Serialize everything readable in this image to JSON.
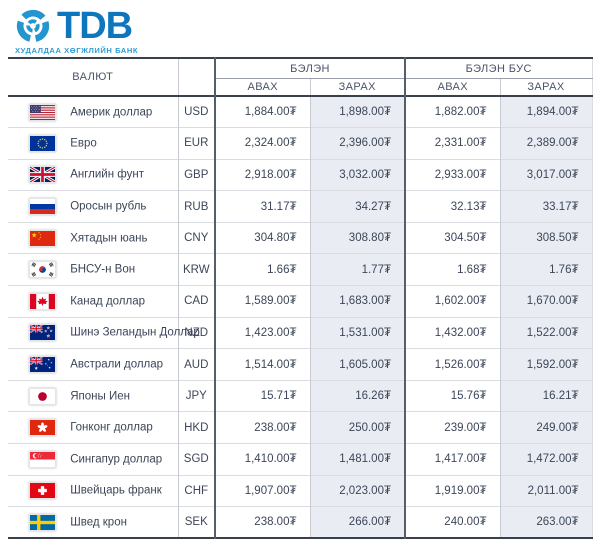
{
  "logo": {
    "text": "TDB",
    "subtitle": "ХУДАЛДАА ХӨГЖЛИЙН БАНК",
    "icon": "tdb-knot-icon",
    "brand_blue": "#0e76bc",
    "accent_blue": "#2f9cd6"
  },
  "table": {
    "header": {
      "currency": "ВАЛЮТ",
      "cash": "БЭЛЭН",
      "noncash": "БЭЛЭН БУС",
      "buy": "АВАХ",
      "sell": "ЗАРАХ"
    },
    "colors": {
      "sell_column_bg": "#e9edf3",
      "dark_border": "#39404a",
      "text": "#3c4658"
    },
    "rows": [
      {
        "flag": "us",
        "name": "Америк доллар",
        "code": "USD",
        "cash_buy": "1,884.00₮",
        "cash_sell": "1,898.00₮",
        "noncash_buy": "1,882.00₮",
        "noncash_sell": "1,894.00₮"
      },
      {
        "flag": "eu",
        "name": "Евро",
        "code": "EUR",
        "cash_buy": "2,324.00₮",
        "cash_sell": "2,396.00₮",
        "noncash_buy": "2,331.00₮",
        "noncash_sell": "2,389.00₮"
      },
      {
        "flag": "gb",
        "name": "Английн фунт",
        "code": "GBP",
        "cash_buy": "2,918.00₮",
        "cash_sell": "3,032.00₮",
        "noncash_buy": "2,933.00₮",
        "noncash_sell": "3,017.00₮"
      },
      {
        "flag": "ru",
        "name": "Оросын рубль",
        "code": "RUB",
        "cash_buy": "31.17₮",
        "cash_sell": "34.27₮",
        "noncash_buy": "32.13₮",
        "noncash_sell": "33.17₮"
      },
      {
        "flag": "cn",
        "name": "Хятадын юань",
        "code": "CNY",
        "cash_buy": "304.80₮",
        "cash_sell": "308.80₮",
        "noncash_buy": "304.50₮",
        "noncash_sell": "308.50₮"
      },
      {
        "flag": "kr",
        "name": "БНСУ-н Вон",
        "code": "KRW",
        "cash_buy": "1.66₮",
        "cash_sell": "1.77₮",
        "noncash_buy": "1.68₮",
        "noncash_sell": "1.76₮"
      },
      {
        "flag": "ca",
        "name": "Канад доллар",
        "code": "CAD",
        "cash_buy": "1,589.00₮",
        "cash_sell": "1,683.00₮",
        "noncash_buy": "1,602.00₮",
        "noncash_sell": "1,670.00₮"
      },
      {
        "flag": "nz",
        "name": "Шинэ Зеландын Доллар",
        "code": "NZD",
        "cash_buy": "1,423.00₮",
        "cash_sell": "1,531.00₮",
        "noncash_buy": "1,432.00₮",
        "noncash_sell": "1,522.00₮"
      },
      {
        "flag": "au",
        "name": "Австрали доллар",
        "code": "AUD",
        "cash_buy": "1,514.00₮",
        "cash_sell": "1,605.00₮",
        "noncash_buy": "1,526.00₮",
        "noncash_sell": "1,592.00₮"
      },
      {
        "flag": "jp",
        "name": "Японы Иен",
        "code": "JPY",
        "cash_buy": "15.71₮",
        "cash_sell": "16.26₮",
        "noncash_buy": "15.76₮",
        "noncash_sell": "16.21₮"
      },
      {
        "flag": "hk",
        "name": "Гонконг доллар",
        "code": "HKD",
        "cash_buy": "238.00₮",
        "cash_sell": "250.00₮",
        "noncash_buy": "239.00₮",
        "noncash_sell": "249.00₮"
      },
      {
        "flag": "sg",
        "name": "Сингапур доллар",
        "code": "SGD",
        "cash_buy": "1,410.00₮",
        "cash_sell": "1,481.00₮",
        "noncash_buy": "1,417.00₮",
        "noncash_sell": "1,472.00₮"
      },
      {
        "flag": "ch",
        "name": "Швейцарь франк",
        "code": "CHF",
        "cash_buy": "1,907.00₮",
        "cash_sell": "2,023.00₮",
        "noncash_buy": "1,919.00₮",
        "noncash_sell": "2,011.00₮"
      },
      {
        "flag": "se",
        "name": "Швед крон",
        "code": "SEK",
        "cash_buy": "238.00₮",
        "cash_sell": "266.00₮",
        "noncash_buy": "240.00₮",
        "noncash_sell": "263.00₮"
      }
    ]
  }
}
